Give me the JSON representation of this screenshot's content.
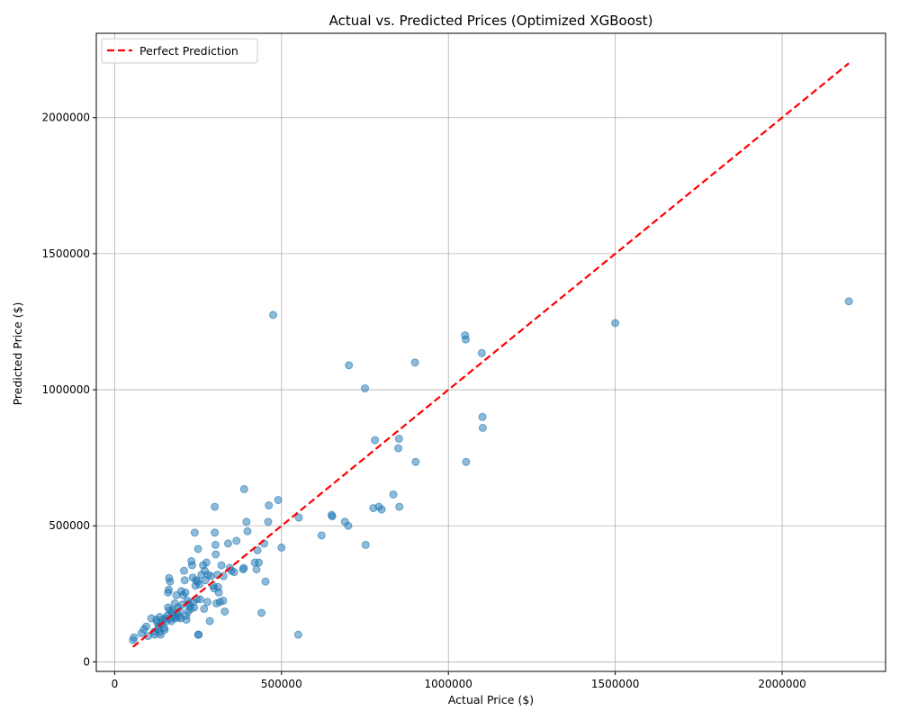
{
  "chart_data": {
    "type": "scatter",
    "title": "Actual vs. Predicted Prices (Optimized XGBoost)",
    "xlabel": "Actual Price ($)",
    "ylabel": "Predicted Price ($)",
    "xlim": [
      -55000,
      2310000
    ],
    "ylim": [
      -35000,
      2310000
    ],
    "x_ticks": [
      0,
      500000,
      1000000,
      1500000,
      2000000
    ],
    "y_ticks": [
      0,
      500000,
      1000000,
      1500000,
      2000000
    ],
    "x_tick_labels": [
      "0",
      "500000",
      "1000000",
      "1500000",
      "2000000"
    ],
    "y_tick_labels": [
      "0",
      "500000",
      "1000000",
      "1500000",
      "2000000"
    ],
    "grid": true,
    "legend": {
      "position": "top-left",
      "entries": [
        "Perfect Prediction"
      ]
    },
    "colors": {
      "points": "#1f77b4",
      "reference_line": "#ff0000"
    },
    "reference_line": {
      "name": "Perfect Prediction",
      "x": [
        55000,
        2200000
      ],
      "y": [
        55000,
        2200000
      ]
    },
    "points": [
      [
        55000,
        80000
      ],
      [
        58000,
        90000
      ],
      [
        80000,
        105000
      ],
      [
        88000,
        120000
      ],
      [
        95000,
        130000
      ],
      [
        100000,
        95000
      ],
      [
        110000,
        160000
      ],
      [
        118000,
        110000
      ],
      [
        120000,
        100000
      ],
      [
        125000,
        155000
      ],
      [
        128000,
        145000
      ],
      [
        130000,
        120000
      ],
      [
        132000,
        130000
      ],
      [
        135000,
        110000
      ],
      [
        135000,
        165000
      ],
      [
        138000,
        100000
      ],
      [
        140000,
        140000
      ],
      [
        145000,
        155000
      ],
      [
        148000,
        125000
      ],
      [
        150000,
        118000
      ],
      [
        152000,
        160000
      ],
      [
        155000,
        150000
      ],
      [
        158000,
        170000
      ],
      [
        160000,
        200000
      ],
      [
        160000,
        255000
      ],
      [
        162000,
        265000
      ],
      [
        163000,
        308000
      ],
      [
        165000,
        190000
      ],
      [
        166000,
        295000
      ],
      [
        168000,
        160000
      ],
      [
        170000,
        150000
      ],
      [
        172000,
        180000
      ],
      [
        175000,
        190000
      ],
      [
        178000,
        165000
      ],
      [
        180000,
        215000
      ],
      [
        182000,
        160000
      ],
      [
        185000,
        245000
      ],
      [
        188000,
        175000
      ],
      [
        190000,
        200000
      ],
      [
        192000,
        165000
      ],
      [
        195000,
        185000
      ],
      [
        198000,
        160000
      ],
      [
        200000,
        260000
      ],
      [
        202000,
        210000
      ],
      [
        205000,
        245000
      ],
      [
        208000,
        335000
      ],
      [
        210000,
        300000
      ],
      [
        212000,
        255000
      ],
      [
        214000,
        170000
      ],
      [
        215000,
        155000
      ],
      [
        218000,
        225000
      ],
      [
        220000,
        185000
      ],
      [
        222000,
        215000
      ],
      [
        225000,
        205000
      ],
      [
        228000,
        195000
      ],
      [
        230000,
        370000
      ],
      [
        232000,
        355000
      ],
      [
        234000,
        310000
      ],
      [
        235000,
        220000
      ],
      [
        238000,
        200000
      ],
      [
        240000,
        475000
      ],
      [
        242000,
        280000
      ],
      [
        244000,
        300000
      ],
      [
        246000,
        230000
      ],
      [
        248000,
        295000
      ],
      [
        250000,
        415000
      ],
      [
        250000,
        100000
      ],
      [
        252000,
        100000
      ],
      [
        254000,
        285000
      ],
      [
        256000,
        230000
      ],
      [
        260000,
        320000
      ],
      [
        265000,
        355000
      ],
      [
        268000,
        195000
      ],
      [
        270000,
        335000
      ],
      [
        272000,
        300000
      ],
      [
        275000,
        365000
      ],
      [
        278000,
        220000
      ],
      [
        280000,
        320000
      ],
      [
        285000,
        150000
      ],
      [
        288000,
        315000
      ],
      [
        295000,
        280000
      ],
      [
        298000,
        270000
      ],
      [
        300000,
        570000
      ],
      [
        300000,
        475000
      ],
      [
        302000,
        430000
      ],
      [
        303000,
        395000
      ],
      [
        305000,
        215000
      ],
      [
        308000,
        320000
      ],
      [
        310000,
        275000
      ],
      [
        312000,
        255000
      ],
      [
        315000,
        220000
      ],
      [
        320000,
        355000
      ],
      [
        325000,
        225000
      ],
      [
        326000,
        315000
      ],
      [
        330000,
        185000
      ],
      [
        340000,
        435000
      ],
      [
        345000,
        345000
      ],
      [
        350000,
        335000
      ],
      [
        358000,
        330000
      ],
      [
        365000,
        445000
      ],
      [
        385000,
        340000
      ],
      [
        387000,
        345000
      ],
      [
        388000,
        635000
      ],
      [
        395000,
        515000
      ],
      [
        398000,
        480000
      ],
      [
        420000,
        365000
      ],
      [
        425000,
        340000
      ],
      [
        428000,
        410000
      ],
      [
        432000,
        365000
      ],
      [
        440000,
        180000
      ],
      [
        448000,
        435000
      ],
      [
        452000,
        295000
      ],
      [
        460000,
        515000
      ],
      [
        462000,
        575000
      ],
      [
        475000,
        1275000
      ],
      [
        490000,
        595000
      ],
      [
        500000,
        420000
      ],
      [
        550000,
        100000
      ],
      [
        552000,
        530000
      ],
      [
        620000,
        465000
      ],
      [
        650000,
        540000
      ],
      [
        652000,
        535000
      ],
      [
        690000,
        515000
      ],
      [
        700000,
        500000
      ],
      [
        702000,
        1090000
      ],
      [
        750000,
        1005000
      ],
      [
        752000,
        430000
      ],
      [
        775000,
        565000
      ],
      [
        780000,
        815000
      ],
      [
        792000,
        570000
      ],
      [
        800000,
        560000
      ],
      [
        835000,
        615000
      ],
      [
        850000,
        785000
      ],
      [
        852000,
        820000
      ],
      [
        853000,
        570000
      ],
      [
        900000,
        1100000
      ],
      [
        902000,
        735000
      ],
      [
        1050000,
        1200000
      ],
      [
        1052000,
        1185000
      ],
      [
        1053000,
        735000
      ],
      [
        1100000,
        1135000
      ],
      [
        1102000,
        900000
      ],
      [
        1103000,
        860000
      ],
      [
        1500000,
        1245000
      ],
      [
        2200000,
        1325000
      ]
    ]
  }
}
